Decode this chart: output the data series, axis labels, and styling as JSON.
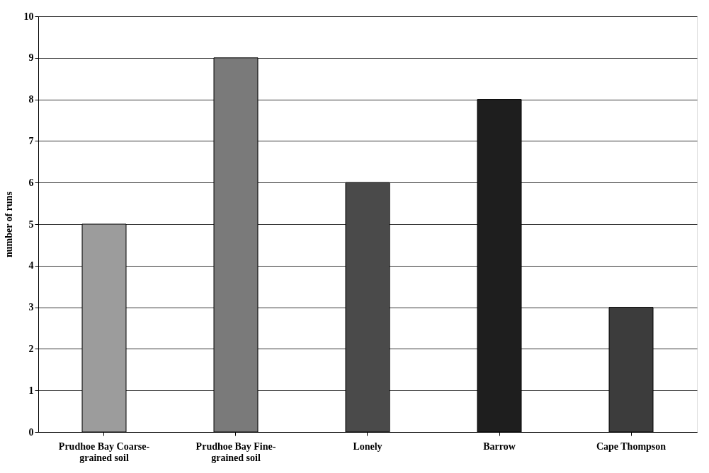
{
  "chart_data": {
    "type": "bar",
    "ylabel": "number of runs",
    "categories": [
      "Prudhoe Bay Coarse-grained soil",
      "Prudhoe Bay Fine-grained soil",
      "Lonely",
      "Barrow",
      "Cape Thompson"
    ],
    "values": [
      5,
      9,
      6,
      8,
      3
    ],
    "colors": [
      "#9c9c9c",
      "#7a7a7a",
      "#4a4a4a",
      "#1e1e1e",
      "#3c3c3c"
    ],
    "ylim": [
      0,
      10
    ],
    "yticks": [
      0,
      1,
      2,
      3,
      4,
      5,
      6,
      7,
      8,
      9,
      10
    ],
    "grid": "y"
  }
}
